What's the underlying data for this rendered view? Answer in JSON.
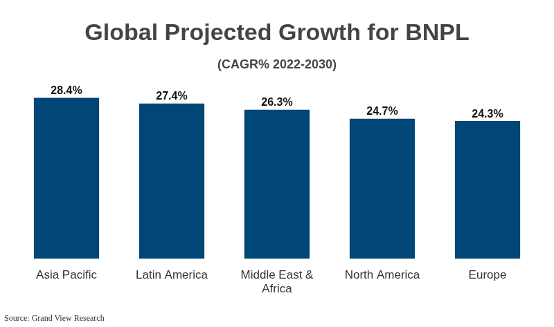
{
  "chart_data": {
    "type": "bar",
    "title": "Global Projected Growth for BNPL",
    "subtitle": "(CAGR% 2022-2030)",
    "categories": [
      "Asia Pacific",
      "Latin America",
      "Middle East & Africa",
      "North America",
      "Europe"
    ],
    "values": [
      28.4,
      27.4,
      26.3,
      24.7,
      24.3
    ],
    "value_labels": [
      "28.4%",
      "27.4%",
      "26.3%",
      "24.7%",
      "24.3%"
    ],
    "data_labels": true,
    "color": "#004677",
    "ylim": [
      0,
      30
    ],
    "grid": false,
    "tick_labels": "x",
    "source": "Source: Grand View Research"
  }
}
